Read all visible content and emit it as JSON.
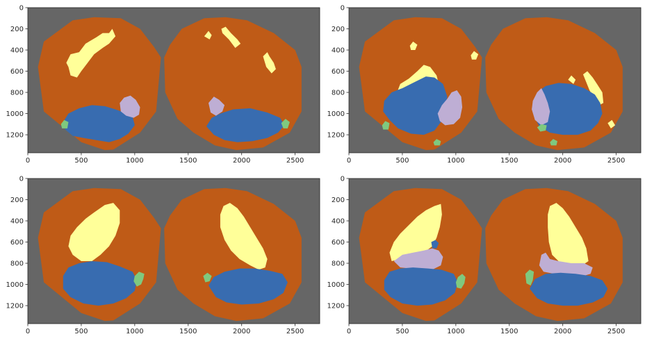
{
  "colors": {
    "background": "#666666",
    "cortex": "#bf5b17",
    "yellow_region": "#ffff99",
    "blue_region": "#386cb0",
    "purple_region": "#beaed4",
    "green_region": "#7fc97f",
    "axes_text": "#262626"
  },
  "chart_data": [
    {
      "type": "heatmap",
      "panel": "top-left",
      "xlim": [
        0,
        2730
      ],
      "ylim": [
        1370,
        0
      ],
      "xticks": [
        "0",
        "500",
        "1000",
        "1500",
        "2000",
        "2500"
      ],
      "yticks": [
        "0",
        "200",
        "400",
        "600",
        "800",
        "1000",
        "1200"
      ],
      "title": "",
      "xlabel": "",
      "ylabel": "",
      "grid": false
    },
    {
      "type": "heatmap",
      "panel": "top-right",
      "xlim": [
        0,
        2730
      ],
      "ylim": [
        1370,
        0
      ],
      "xticks": [
        "0",
        "500",
        "1000",
        "1500",
        "2000",
        "2500"
      ],
      "yticks": [
        "0",
        "200",
        "400",
        "600",
        "800",
        "1000",
        "1200"
      ],
      "title": "",
      "xlabel": "",
      "ylabel": "",
      "grid": false
    },
    {
      "type": "heatmap",
      "panel": "bottom-left",
      "xlim": [
        0,
        2730
      ],
      "ylim": [
        1370,
        0
      ],
      "xticks": [
        "0",
        "500",
        "1000",
        "1500",
        "2000",
        "2500"
      ],
      "yticks": [
        "0",
        "200",
        "400",
        "600",
        "800",
        "1000",
        "1200"
      ],
      "title": "",
      "xlabel": "",
      "ylabel": "",
      "grid": false
    },
    {
      "type": "heatmap",
      "panel": "bottom-right",
      "xlim": [
        0,
        2730
      ],
      "ylim": [
        1370,
        0
      ],
      "xticks": [
        "0",
        "500",
        "1000",
        "1500",
        "2000",
        "2500"
      ],
      "yticks": [
        "0",
        "200",
        "400",
        "600",
        "800",
        "1000",
        "1200"
      ],
      "title": "",
      "xlabel": "",
      "ylabel": "",
      "grid": false
    }
  ]
}
